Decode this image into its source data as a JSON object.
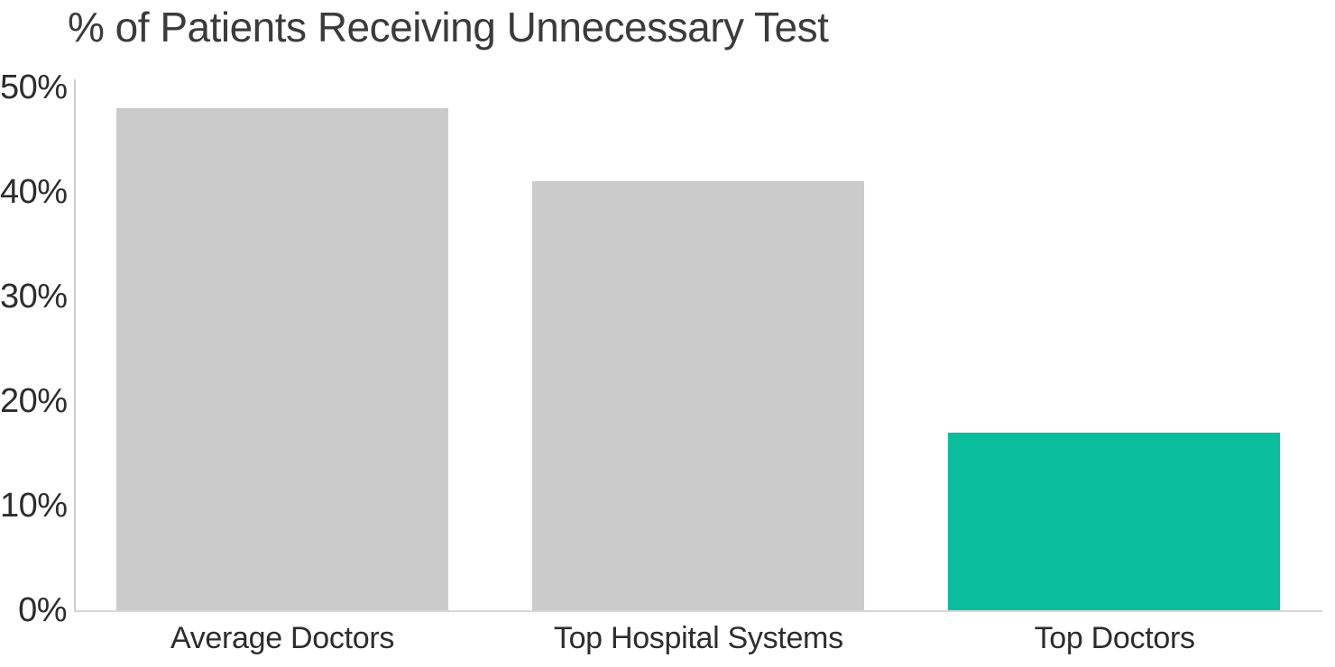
{
  "chart_data": {
    "type": "bar",
    "title": "% of Patients Receiving Unnecessary Test",
    "categories": [
      "Average Doctors",
      "Top Hospital Systems",
      "Top Doctors"
    ],
    "values": [
      48,
      41,
      17
    ],
    "value_unit": "%",
    "xlabel": "",
    "ylabel": "",
    "ylim": [
      0,
      50
    ],
    "yticks": [
      0,
      10,
      20,
      30,
      40,
      50
    ],
    "ytick_labels": [
      "0%",
      "10%",
      "20%",
      "30%",
      "40%",
      "50%"
    ],
    "grid": false,
    "legend": false,
    "bar_colors": [
      "#cbcbcb",
      "#cbcbcb",
      "#0abd9d"
    ],
    "colors": {
      "bar_default": "#cbcbcb",
      "bar_highlight": "#0abd9d",
      "axis_line": "#d2d2d2",
      "title_text": "#3b3b3b",
      "tick_text": "#2d2d2d",
      "background": "#ffffff"
    },
    "highlight_index": 2
  }
}
